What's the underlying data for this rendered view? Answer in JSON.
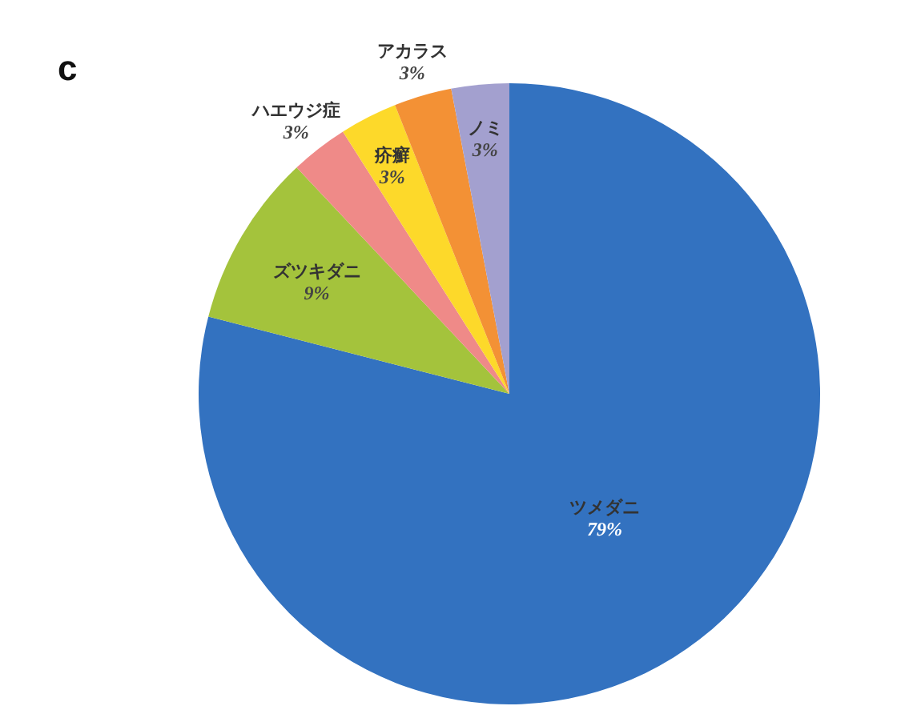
{
  "chart_data": {
    "type": "pie",
    "title": "c",
    "categories": [
      "ツメダニ",
      "ズツキダニ",
      "ハエウジ症",
      "疥癬",
      "アカラス",
      "ノミ"
    ],
    "values": [
      79,
      9,
      3,
      3,
      3,
      3
    ],
    "value_labels": [
      "79%",
      "9%",
      "3%",
      "3%",
      "3%",
      "3%"
    ],
    "colors": [
      "#3372c0",
      "#a4c33c",
      "#ef8a88",
      "#fdd92a",
      "#f39135",
      "#a3a0cf"
    ]
  }
}
